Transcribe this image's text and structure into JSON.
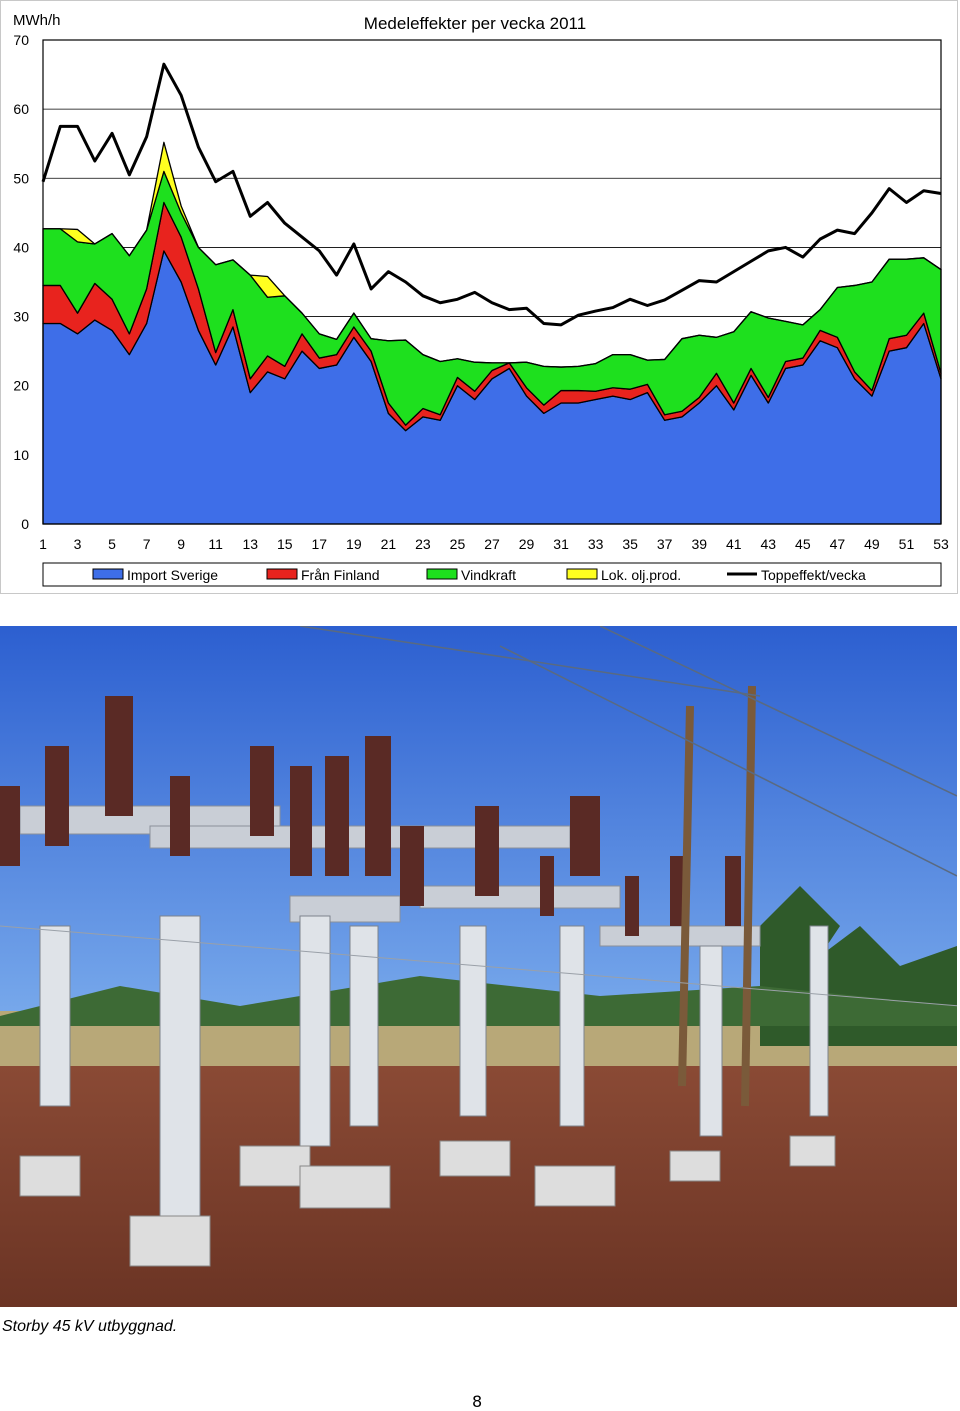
{
  "chart_data": {
    "type": "area",
    "title": "Medeleffekter per vecka 2011",
    "unit_label": "MWh/h",
    "ylim": [
      0,
      70
    ],
    "yticks": [
      0,
      10,
      20,
      30,
      40,
      50,
      60,
      70
    ],
    "x": [
      1,
      2,
      3,
      4,
      5,
      6,
      7,
      8,
      9,
      10,
      11,
      12,
      13,
      14,
      15,
      16,
      17,
      18,
      19,
      20,
      21,
      22,
      23,
      24,
      25,
      26,
      27,
      28,
      29,
      30,
      31,
      32,
      33,
      34,
      35,
      36,
      37,
      38,
      39,
      40,
      41,
      42,
      43,
      44,
      45,
      46,
      47,
      48,
      49,
      50,
      51,
      52,
      53
    ],
    "xticks": [
      1,
      3,
      5,
      7,
      9,
      11,
      13,
      15,
      17,
      19,
      21,
      23,
      25,
      27,
      29,
      31,
      33,
      35,
      37,
      39,
      41,
      43,
      45,
      47,
      49,
      51,
      53
    ],
    "legend_position": "bottom",
    "series": [
      {
        "name": "Import Sverige",
        "kind": "stacked-area",
        "color": "#3e6ee8",
        "values": [
          29,
          29,
          27.5,
          29.5,
          28,
          24.5,
          29,
          39.5,
          35,
          28,
          23,
          28.5,
          19,
          22,
          21,
          25,
          22.5,
          23,
          27,
          23.5,
          16,
          13.5,
          15.5,
          15,
          20,
          18,
          21,
          22.5,
          18.5,
          16,
          17.5,
          17.5,
          18,
          18.5,
          18,
          19,
          15,
          15.5,
          17.5,
          20,
          16.5,
          21.5,
          17.5,
          22.5,
          23,
          26.5,
          25.5,
          21,
          18.5,
          25,
          25.5,
          29,
          21
        ]
      },
      {
        "name": "Från Finland",
        "kind": "stacked-area",
        "color": "#e8231e",
        "values": [
          5.5,
          5.5,
          3,
          5.3,
          4.5,
          3,
          5,
          7,
          6.5,
          6,
          1.8,
          2.5,
          2,
          2.3,
          1.8,
          2.5,
          1.5,
          1.5,
          1.5,
          1.5,
          1.5,
          0.8,
          1.2,
          0.8,
          1.2,
          1.2,
          1.2,
          0.8,
          1.2,
          1.2,
          1.8,
          1.8,
          1.2,
          1.2,
          1.5,
          1.2,
          0.8,
          0.8,
          0.8,
          1.8,
          1,
          1,
          0.8,
          1,
          1,
          1.5,
          1.5,
          1,
          0.8,
          1.8,
          1.8,
          1.5,
          0.8
        ]
      },
      {
        "name": "Vindkraft",
        "kind": "stacked-area",
        "color": "#1ee01e",
        "values": [
          8.2,
          8.2,
          10.3,
          5.7,
          9.5,
          11.3,
          8.5,
          4.5,
          3.5,
          6,
          12.7,
          7.2,
          15,
          8.5,
          10.2,
          3,
          3.5,
          2.2,
          2,
          1.8,
          9,
          12.3,
          7.8,
          7.7,
          2.7,
          4.2,
          1.1,
          0,
          3.7,
          5.6,
          3.4,
          3.5,
          4,
          4.8,
          5,
          3.5,
          8,
          10.5,
          9,
          5.2,
          10.3,
          8.2,
          11.5,
          5.8,
          4.8,
          3,
          7.2,
          12.5,
          15.7,
          11.5,
          11,
          8,
          15
        ]
      },
      {
        "name": "Lok. olj.prod.",
        "kind": "stacked-area",
        "color": "#ffff20",
        "values": [
          0,
          0,
          1.8,
          0,
          0,
          0,
          0,
          4.2,
          1,
          0,
          0,
          0,
          0,
          3,
          0,
          0,
          0,
          0,
          0,
          0,
          0,
          0,
          0,
          0,
          0,
          0,
          0,
          0,
          0,
          0,
          0,
          0,
          0,
          0,
          0,
          0,
          0,
          0,
          0,
          0,
          0,
          0,
          0,
          0,
          0,
          0,
          0,
          0,
          0,
          0,
          0,
          0,
          0
        ]
      },
      {
        "name": "Toppeffekt/vecka",
        "kind": "line",
        "color": "#000000",
        "values": [
          49.5,
          57.5,
          57.5,
          52.5,
          56.5,
          50.5,
          56,
          66.5,
          62,
          54.5,
          49.5,
          51,
          44.5,
          46.5,
          43.5,
          41.5,
          39.5,
          36,
          40.5,
          34,
          36.5,
          35,
          33,
          32,
          32.5,
          33.5,
          32,
          31,
          31.2,
          29,
          28.8,
          30.2,
          30.8,
          31.3,
          32.5,
          31.6,
          32.4,
          33.8,
          35.2,
          35,
          36.5,
          38,
          39.5,
          40,
          38.6,
          41.2,
          42.5,
          42,
          45,
          48.5,
          46.5,
          48.2,
          47.8
        ]
      }
    ]
  },
  "caption": "Storby 45 kV utbyggnad.",
  "page_number": "8"
}
